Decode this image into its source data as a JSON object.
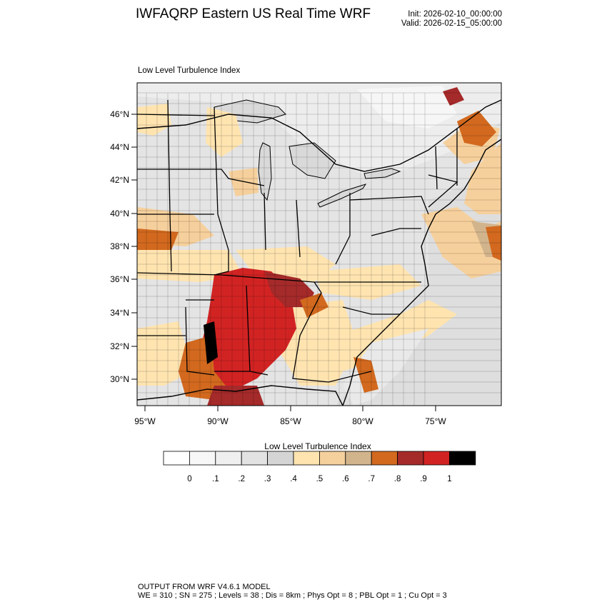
{
  "header": {
    "title": "IWFAQRP Eastern US Real Time WRF",
    "init": "Init: 2026-02-10_00:00:00",
    "valid": "Valid: 2026-02-15_05:00:00"
  },
  "panel": {
    "title": "Low Level Turbulence Index",
    "lat_ticks": [
      "30°N",
      "32°N",
      "34°N",
      "36°N",
      "38°N",
      "40°N",
      "42°N",
      "44°N",
      "46°N"
    ],
    "lon_ticks": [
      "95°W",
      "90°W",
      "85°W",
      "80°W",
      "75°W"
    ]
  },
  "colorbar": {
    "title": "Low Level Turbulence Index",
    "labels": [
      "0",
      ".1",
      ".2",
      ".3",
      ".4",
      ".5",
      ".6",
      ".7",
      ".8",
      ".9",
      "1"
    ],
    "colors": [
      "#ffffff",
      "#f7f7f7",
      "#efefef",
      "#e2e2e2",
      "#d4d4d4",
      "#ffe4b0",
      "#f6d09c",
      "#d2b48c",
      "#d2691e",
      "#a52a2a",
      "#d22323",
      "#000000"
    ]
  },
  "footer": {
    "line1": "OUTPUT FROM WRF V4.6.1 MODEL",
    "line2": "WE = 310 ; SN = 275 ; Levels = 38 ; Dis = 8km ; Phys Opt = 8 ; PBL Opt = 1 ; Cu Opt = 3"
  }
}
